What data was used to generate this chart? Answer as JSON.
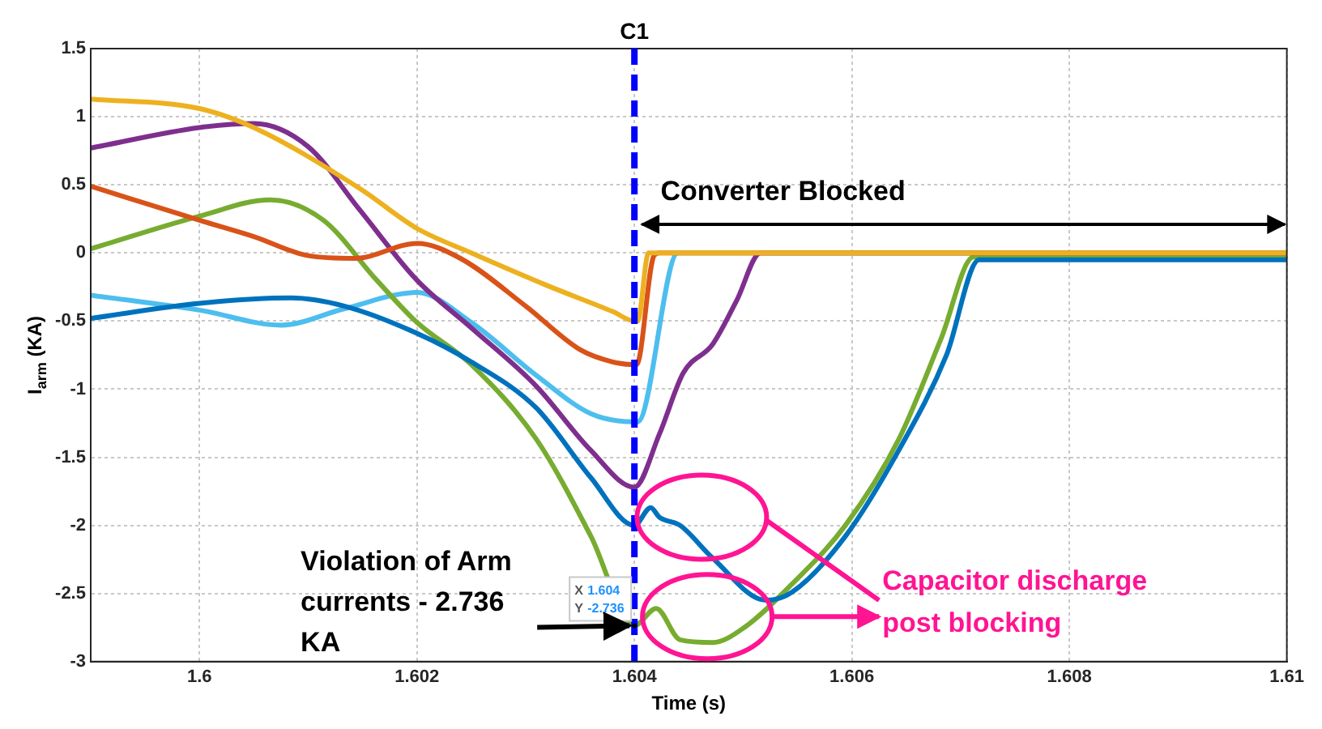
{
  "chart_data": {
    "type": "line",
    "xlabel": "Time (s)",
    "ylabel": "I$_{arm}$ (KA)",
    "xlim": [
      1.599,
      1.61
    ],
    "xticks": [
      {
        "value": 1.599,
        "label": null
      },
      1.6,
      1.602,
      1.604,
      1.606,
      1.608,
      1.61
    ],
    "ylim": [
      -3,
      1.5
    ],
    "yticks": [
      -3,
      -2.5,
      -2,
      -1.5,
      -1,
      -0.5,
      0,
      0.5,
      1,
      1.5
    ],
    "grid": true,
    "marker": "none",
    "line_style": "solid",
    "series": [
      {
        "color": "#edb120",
        "x": [
          1.599,
          1.6,
          1.6005,
          1.60148,
          1.602,
          1.6025,
          1.6032,
          1.6038,
          1.604,
          1.60403,
          1.60413,
          1.61
        ],
        "values": [
          1.13,
          1.06,
          0.92,
          0.47,
          0.18,
          0,
          -0.24,
          -0.43,
          -0.5,
          -0.5,
          0,
          0
        ]
      },
      {
        "color": "#d95319",
        "x": [
          1.599,
          1.6,
          1.6005,
          1.601,
          1.60143,
          1.602,
          1.6024,
          1.603,
          1.6035,
          1.6038,
          1.604,
          1.60402,
          1.60418,
          1.60423,
          1.61
        ],
        "values": [
          0.49,
          0.24,
          0.12,
          -0.02,
          -0.04,
          0.07,
          -0.04,
          -0.39,
          -0.71,
          -0.8,
          -0.82,
          -0.82,
          -0.02,
          0,
          0
        ]
      },
      {
        "color": "#7e2f8e",
        "x": [
          1.599,
          1.6,
          1.6005,
          1.601,
          1.60148,
          1.602,
          1.6025,
          1.6031,
          1.6036,
          1.604,
          1.60423,
          1.60445,
          1.60472,
          1.60494,
          1.60516,
          1.61
        ],
        "values": [
          0.77,
          0.92,
          0.95,
          0.78,
          0.31,
          -0.2,
          -0.55,
          -0.98,
          -1.45,
          -1.72,
          -1.33,
          -0.88,
          -0.67,
          -0.35,
          0,
          0
        ]
      },
      {
        "color": "#0072bd",
        "x": [
          1.599,
          1.6,
          1.60084,
          1.60133,
          1.602,
          1.6025,
          1.6031,
          1.6036,
          1.604,
          1.60415,
          1.60423,
          1.60442,
          1.60472,
          1.60521,
          1.60545,
          1.60594,
          1.60643,
          1.60687,
          1.60717,
          1.61
        ],
        "values": [
          -0.48,
          -0.37,
          -0.33,
          -0.39,
          -0.59,
          -0.8,
          -1.14,
          -1.65,
          -2,
          -1.87,
          -1.94,
          -2,
          -2.24,
          -2.55,
          -2.49,
          -2.08,
          -1.45,
          -0.75,
          -0.05,
          -0.05
        ]
      },
      {
        "color": "#77ac30",
        "x": [
          1.599,
          1.6,
          1.60065,
          1.60114,
          1.60163,
          1.602,
          1.6025,
          1.6031,
          1.6036,
          1.604,
          1.6042,
          1.60442,
          1.60472,
          1.60501,
          1.60545,
          1.60594,
          1.60643,
          1.60682,
          1.60712,
          1.61
        ],
        "values": [
          0.03,
          0.27,
          0.39,
          0.24,
          -0.2,
          -0.51,
          -0.82,
          -1.37,
          -2.08,
          -2.736,
          -2.61,
          -2.84,
          -2.86,
          -2.75,
          -2.43,
          -2,
          -1.37,
          -0.63,
          -0.03,
          -0.03
        ]
      },
      {
        "color": "#4dbeee",
        "x": [
          1.599,
          1.6,
          1.60075,
          1.60133,
          1.602,
          1.6025,
          1.6031,
          1.6036,
          1.604,
          1.60403,
          1.6044,
          1.61
        ],
        "values": [
          -0.31,
          -0.42,
          -0.53,
          -0.41,
          -0.29,
          -0.51,
          -0.9,
          -1.18,
          -1.24,
          -1.24,
          0,
          0
        ]
      }
    ],
    "ref_lines": [
      {
        "axis": "x",
        "value": 1.604,
        "label": "C1",
        "color": "#0000ff",
        "line_style": "dashed"
      }
    ],
    "annotations": [
      "Converter Blocked",
      {
        "text": "Violation of Arm currents - 2.736 KA",
        "x": 1.604,
        "y": -2.736
      },
      {
        "text": "X 1.604\nY -2.736",
        "x": 1.604,
        "y": -2.736
      },
      "Capacitor discharge post blocking"
    ]
  }
}
